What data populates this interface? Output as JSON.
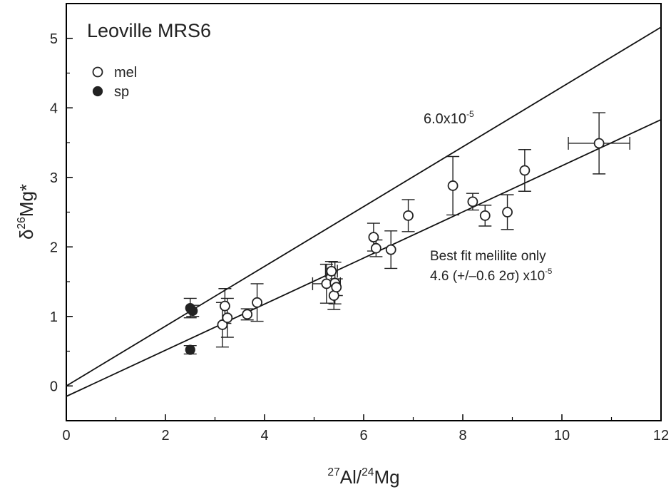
{
  "chart_data": {
    "type": "scatter",
    "title": "Leoville MRS6",
    "xlabel": {
      "sup1": "27",
      "base1": "Al/",
      "sup2": "24",
      "base2": "Mg"
    },
    "ylabel": {
      "prefix": "δ",
      "sup": "26",
      "base": "Mg*"
    },
    "xlim": [
      0,
      12
    ],
    "ylim": [
      -0.5,
      5.5
    ],
    "xticks": [
      0,
      2,
      4,
      6,
      8,
      10,
      12
    ],
    "yticks": [
      0,
      1,
      2,
      3,
      4,
      5
    ],
    "grid": false,
    "legend_position": "top-left",
    "series": [
      {
        "name": "mel",
        "marker": "open-circle",
        "points": [
          {
            "x": 3.15,
            "y": 0.88,
            "yerr": 0.32
          },
          {
            "x": 3.2,
            "y": 1.15,
            "yerr": 0.25
          },
          {
            "x": 3.25,
            "y": 0.98,
            "yerr": 0.28
          },
          {
            "x": 3.65,
            "y": 1.03,
            "yerr": 0.08
          },
          {
            "x": 3.85,
            "y": 1.2,
            "yerr": 0.27
          },
          {
            "x": 5.25,
            "y": 1.47,
            "yerr": 0.28,
            "xerr": 0.28
          },
          {
            "x": 5.35,
            "y": 1.65,
            "yerr": 0.14,
            "xerr": 0.12
          },
          {
            "x": 5.4,
            "y": 1.3,
            "yerr": 0.2
          },
          {
            "x": 5.42,
            "y": 1.48,
            "yerr": 0.3
          },
          {
            "x": 5.45,
            "y": 1.42,
            "yerr": 0.12
          },
          {
            "x": 6.2,
            "y": 2.14,
            "yerr": 0.2
          },
          {
            "x": 6.25,
            "y": 1.98,
            "yerr": 0.12
          },
          {
            "x": 6.55,
            "y": 1.96,
            "yerr": 0.27
          },
          {
            "x": 6.9,
            "y": 2.45,
            "yerr": 0.23
          },
          {
            "x": 7.8,
            "y": 2.88,
            "yerr": 0.42
          },
          {
            "x": 8.2,
            "y": 2.65,
            "yerr": 0.12
          },
          {
            "x": 8.45,
            "y": 2.45,
            "yerr": 0.15
          },
          {
            "x": 8.9,
            "y": 2.5,
            "yerr": 0.25
          },
          {
            "x": 9.25,
            "y": 3.1,
            "yerr": 0.3
          },
          {
            "x": 10.75,
            "y": 3.49,
            "yerr": 0.44,
            "xerr": 0.62
          }
        ]
      },
      {
        "name": "sp",
        "marker": "filled-circle",
        "points": [
          {
            "x": 2.5,
            "y": 1.12,
            "yerr": 0.14
          },
          {
            "x": 2.55,
            "y": 1.08,
            "yerr": 0.08
          },
          {
            "x": 2.5,
            "y": 0.52,
            "yerr": 0.06
          }
        ]
      }
    ],
    "lines": [
      {
        "label_base": "6.0x10",
        "label_sup": "-5",
        "x": [
          0,
          12
        ],
        "y": [
          0.0,
          5.16
        ]
      },
      {
        "label_line1": "Best fit melilite only",
        "label_line2_base": "4.6 (+/–0.6 2σ) x10",
        "label_line2_sup": "-5",
        "x": [
          0,
          12
        ],
        "y": [
          -0.15,
          3.83
        ]
      }
    ]
  }
}
